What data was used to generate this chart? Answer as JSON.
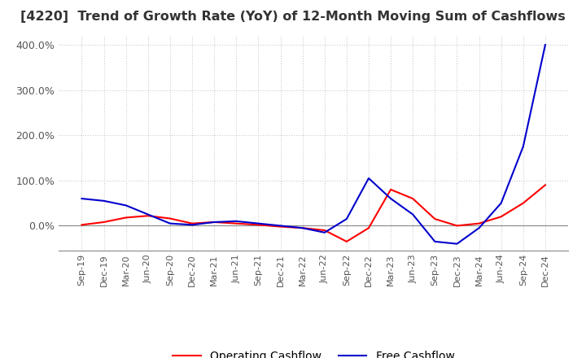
{
  "title": "[4220]  Trend of Growth Rate (YoY) of 12-Month Moving Sum of Cashflows",
  "title_fontsize": 11.5,
  "title_color": "#333333",
  "background_color": "#ffffff",
  "grid_color": "#cccccc",
  "ylim": [
    -55,
    420
  ],
  "yticks": [
    0.0,
    100.0,
    200.0,
    300.0,
    400.0
  ],
  "ytick_labels": [
    "0.0%",
    "100.0%",
    "200.0%",
    "300.0%",
    "400.0%"
  ],
  "x_labels": [
    "Sep-19",
    "Dec-19",
    "Mar-20",
    "Jun-20",
    "Sep-20",
    "Dec-20",
    "Mar-21",
    "Jun-21",
    "Sep-21",
    "Dec-21",
    "Mar-22",
    "Jun-22",
    "Sep-22",
    "Dec-22",
    "Mar-23",
    "Jun-23",
    "Sep-23",
    "Dec-23",
    "Mar-24",
    "Jun-24",
    "Sep-24",
    "Dec-24"
  ],
  "operating_cashflow": [
    2.0,
    8.0,
    18.0,
    22.0,
    16.0,
    5.0,
    8.0,
    5.0,
    2.0,
    -2.0,
    -5.0,
    -10.0,
    -35.0,
    -5.0,
    80.0,
    60.0,
    15.0,
    0.0,
    5.0,
    20.0,
    50.0,
    90.0
  ],
  "free_cashflow": [
    60.0,
    55.0,
    45.0,
    25.0,
    5.0,
    2.0,
    8.0,
    10.0,
    5.0,
    0.0,
    -5.0,
    -15.0,
    15.0,
    105.0,
    60.0,
    25.0,
    -35.0,
    -40.0,
    -5.0,
    50.0,
    175.0,
    400.0
  ],
  "operating_color": "#ff0000",
  "free_color": "#0000cd",
  "line_width": 1.5,
  "legend_labels": [
    "Operating Cashflow",
    "Free Cashflow"
  ]
}
